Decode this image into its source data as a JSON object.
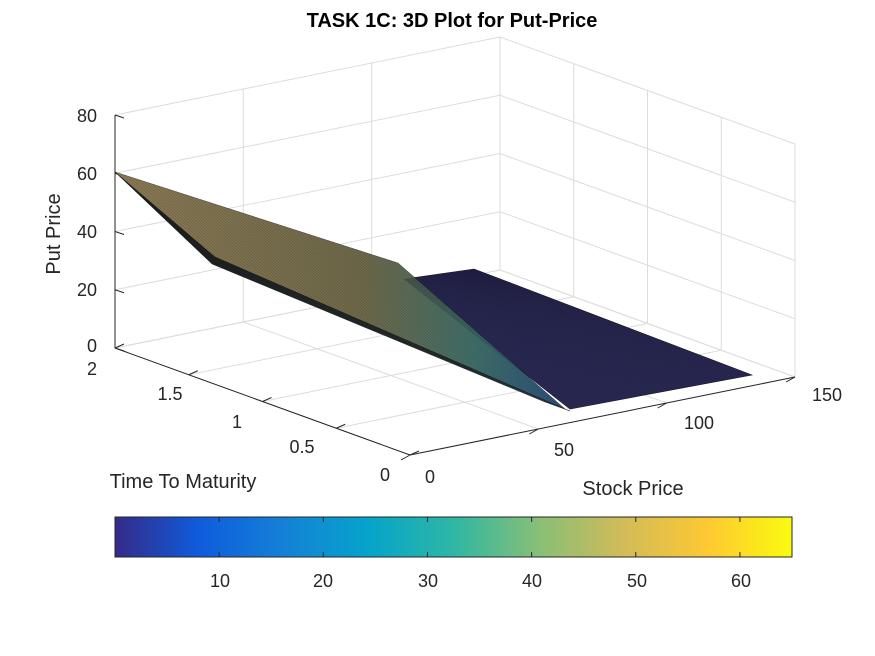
{
  "chart_data": {
    "type": "surface",
    "title": "TASK 1C: 3D Plot for Put-Price",
    "xlabel": "Stock Price",
    "ylabel": "Time To Maturity",
    "zlabel": "Put Price",
    "xlim": [
      0,
      150
    ],
    "ylim": [
      0,
      2
    ],
    "zlim": [
      0,
      80
    ],
    "x_ticks": [
      "0",
      "50",
      "100",
      "150"
    ],
    "y_ticks": [
      "0",
      "0.5",
      "1",
      "1.5",
      "2"
    ],
    "z_ticks": [
      "0",
      "20",
      "40",
      "60",
      "80"
    ],
    "grid": true,
    "surface": {
      "stock_price_range": [
        0,
        140
      ],
      "time_range": [
        0,
        2
      ],
      "strike": 60,
      "put_price_at_zero_stock": 60,
      "put_price_above_strike": 0
    },
    "colorbar": {
      "placement": "bottom",
      "colormap": "parula",
      "range": [
        0,
        65
      ],
      "ticks": [
        "10",
        "20",
        "30",
        "40",
        "50",
        "60"
      ],
      "colors": [
        "#352a87",
        "#0f5cdd",
        "#1481d6",
        "#06a4ca",
        "#2eb7a4",
        "#87bf77",
        "#d1bb59",
        "#fec832",
        "#f9fb0e"
      ]
    }
  }
}
